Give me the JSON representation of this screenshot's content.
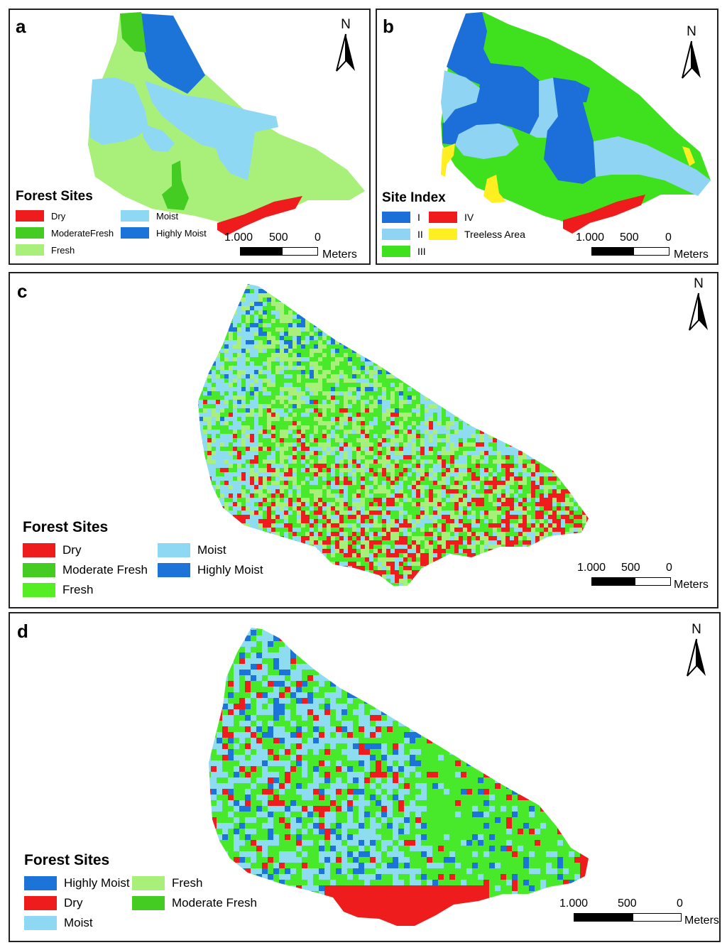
{
  "colors": {
    "dry": "#ee1c1c",
    "moderate_fresh": "#44cc22",
    "fresh": "#a8f07a",
    "moist": "#8fd8f4",
    "highly_moist": "#1c74d8",
    "site_I": "#1c6fd8",
    "site_II": "#8fd4f2",
    "site_III": "#3fe01e",
    "site_IV": "#ee1c1c",
    "treeless": "#ffee22",
    "raster_fresh": "#48e82a",
    "raster_moist": "#8ddcf0"
  },
  "north_letter": "N",
  "scale": {
    "labels": [
      "1.000",
      "500",
      "0"
    ],
    "unit": "Meters"
  },
  "panels": {
    "a": {
      "label": "a",
      "legend_title": "Forest Sites",
      "legend": [
        {
          "label": "Dry",
          "color": "#ee1c1c"
        },
        {
          "label": "ModerateFresh",
          "color": "#44cc22"
        },
        {
          "label": "Fresh",
          "color": "#a8f07a"
        },
        {
          "label": "Moist",
          "color": "#8fd8f4"
        },
        {
          "label": "Highly Moist",
          "color": "#1c74d8"
        }
      ]
    },
    "b": {
      "label": "b",
      "legend_title": "Site Index",
      "legend": [
        {
          "label": "I",
          "color": "#1c6fd8"
        },
        {
          "label": "II",
          "color": "#8fd4f2"
        },
        {
          "label": "III",
          "color": "#3fe01e"
        },
        {
          "label": "IV",
          "color": "#ee1c1c"
        },
        {
          "label": "Treeless Area",
          "color": "#ffee22"
        }
      ]
    },
    "c": {
      "label": "c",
      "legend_title": "Forest Sites",
      "legend": [
        {
          "label": "Dry",
          "color": "#ee1c1c"
        },
        {
          "label": "Moderate Fresh",
          "color": "#44cc22"
        },
        {
          "label": "Fresh",
          "color": "#55ee22"
        },
        {
          "label": "Moist",
          "color": "#8fd8f4"
        },
        {
          "label": "Highly Moist",
          "color": "#1c74d8"
        }
      ]
    },
    "d": {
      "label": "d",
      "legend_title": "Forest Sites",
      "legend": [
        {
          "label": "Highly Moist",
          "color": "#1c74d8"
        },
        {
          "label": "Dry",
          "color": "#ee1c1c"
        },
        {
          "label": "Moist",
          "color": "#8fd8f4"
        },
        {
          "label": "Fresh",
          "color": "#a8f07a"
        },
        {
          "label": "Moderate Fresh",
          "color": "#44cc22"
        }
      ]
    }
  }
}
